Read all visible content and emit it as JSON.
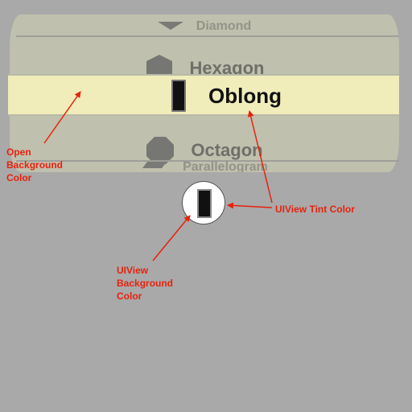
{
  "picker": {
    "rows": [
      {
        "label": "Diamond",
        "icon": "diamond-icon"
      },
      {
        "label": "Hexagon",
        "icon": "hexagon-icon"
      },
      {
        "label": "Oblong",
        "icon": "oblong-icon",
        "selected": true
      },
      {
        "label": "Octagon",
        "icon": "octagon-icon"
      },
      {
        "label": "Parallelogram",
        "icon": "parallelogram-icon"
      }
    ],
    "selected_background_color": "#f0edba",
    "row_background_color": "#c0c0ae"
  },
  "indicator": {
    "icon": "oblong-icon",
    "background_color": "#ffffff",
    "tint_color": "#111111"
  },
  "annotations": {
    "open_background": "Open Background Color",
    "tint": "UIView Tint Color",
    "view_background": "UIView Background Color"
  },
  "colors": {
    "annotation": "#e8210d",
    "canvas": "#a9a9a9"
  }
}
